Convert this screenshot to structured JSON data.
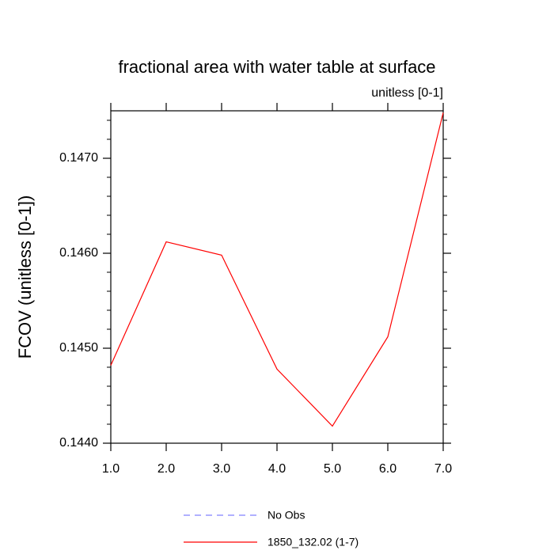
{
  "chart_data": {
    "type": "line",
    "title": "fractional area with water table at surface",
    "subtitle": "unitless [0-1]",
    "y_label": "FCOV  (unitless [0-1])",
    "x": [
      1,
      2,
      3,
      4,
      5,
      6,
      7
    ],
    "xlim": [
      1,
      7
    ],
    "xticks": [
      {
        "value": 1,
        "label": "1.0"
      },
      {
        "value": 2,
        "label": "2.0"
      },
      {
        "value": 3,
        "label": "3.0"
      },
      {
        "value": 4,
        "label": "4.0"
      },
      {
        "value": 5,
        "label": "5.0"
      },
      {
        "value": 6,
        "label": "6.0"
      },
      {
        "value": 7,
        "label": "7.0"
      }
    ],
    "ylim": [
      0.144,
      0.1475
    ],
    "yticks": [
      {
        "value": 0.144,
        "label": "0.1440"
      },
      {
        "value": 0.145,
        "label": "0.1450"
      },
      {
        "value": 0.146,
        "label": "0.1460"
      },
      {
        "value": 0.147,
        "label": "0.1470"
      }
    ],
    "series": [
      {
        "name": "No Obs",
        "color": "#8080ff",
        "dashed": true,
        "values": [
          null,
          null,
          null,
          null,
          null,
          null,
          null
        ]
      },
      {
        "name": "1850_132.02 (1-7)",
        "color": "#ff0000",
        "dashed": false,
        "values": [
          0.14482,
          0.14612,
          0.14598,
          0.14478,
          0.14418,
          0.14512,
          0.14748
        ]
      }
    ]
  }
}
